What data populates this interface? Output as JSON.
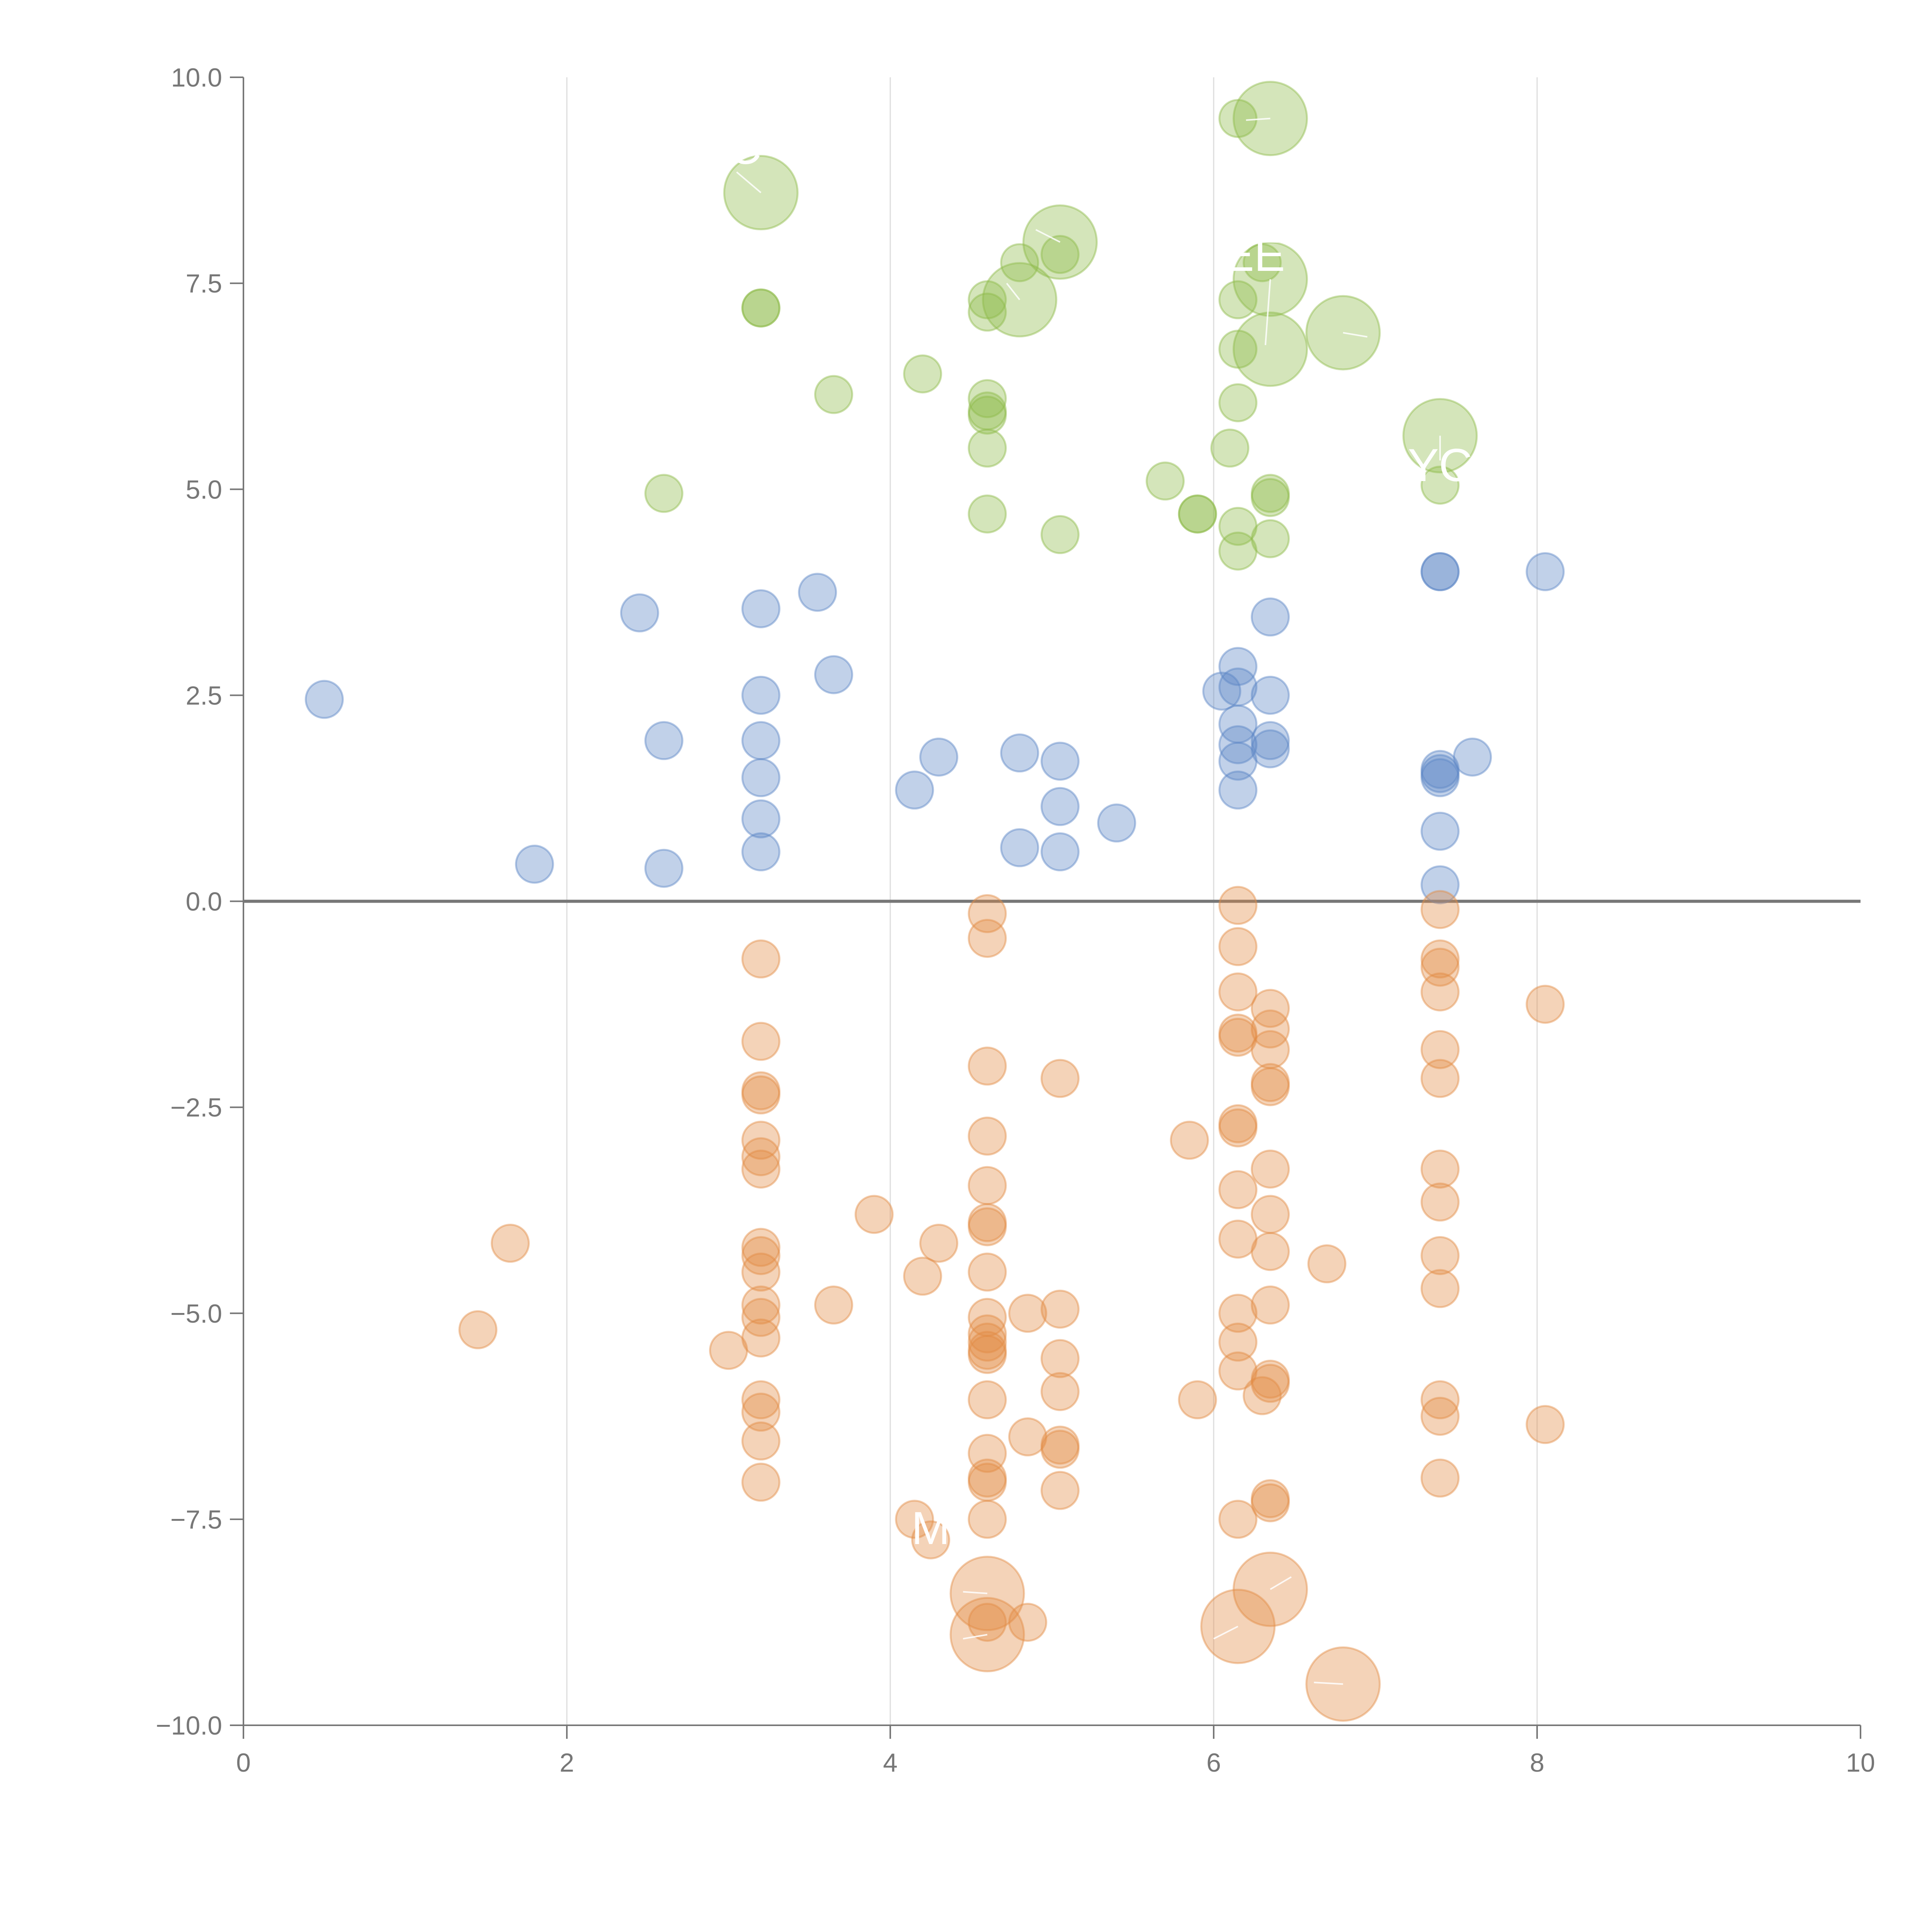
{
  "chart_data": {
    "type": "scatter",
    "title": "",
    "xlabel": "",
    "ylabel": "",
    "xlim": [
      0,
      10
    ],
    "ylim": [
      -10,
      10
    ],
    "x_ticks": [
      0,
      2,
      4,
      6,
      8,
      10
    ],
    "x_tick_labels": [
      "0",
      "2",
      "4",
      "6",
      "8",
      "10"
    ],
    "y_ticks": [
      10,
      7.5,
      5,
      2.5,
      0,
      -2.5,
      -5,
      -7.5,
      -10
    ],
    "y_tick_labels": [
      "10.0",
      "7.5",
      "5.0",
      "2.5",
      "0.0",
      "−2.5",
      "−5.0",
      "−7.5",
      "−10.0"
    ],
    "vertical_grid_at": [
      2,
      4,
      6,
      8
    ],
    "reference_line_y": 0,
    "colors": {
      "green": "#8dbb4a",
      "blue": "#5b86c6",
      "orange": "#e28c45",
      "axis": "#777777",
      "grid": "#dddddd"
    },
    "series": [
      {
        "name": "green",
        "color": "#8dbb4a",
        "points": [
          [
            6.15,
            9.5,
            1
          ],
          [
            6.35,
            9.5,
            2
          ],
          [
            3.2,
            8.6,
            2
          ],
          [
            5.05,
            8.0,
            2
          ],
          [
            5.05,
            7.85,
            1
          ],
          [
            4.8,
            7.75,
            1
          ],
          [
            6.3,
            7.75,
            1
          ],
          [
            6.35,
            7.55,
            2
          ],
          [
            4.8,
            7.3,
            2
          ],
          [
            4.6,
            7.3,
            1
          ],
          [
            4.6,
            7.15,
            1
          ],
          [
            3.2,
            7.2,
            1
          ],
          [
            3.2,
            7.2,
            1
          ],
          [
            6.15,
            7.3,
            1
          ],
          [
            6.8,
            6.9,
            2
          ],
          [
            6.35,
            6.7,
            2
          ],
          [
            6.15,
            6.7,
            1
          ],
          [
            4.2,
            6.4,
            1
          ],
          [
            3.65,
            6.15,
            1
          ],
          [
            4.6,
            6.1,
            1
          ],
          [
            6.15,
            6.05,
            1
          ],
          [
            4.6,
            5.9,
            1
          ],
          [
            4.6,
            5.95,
            1
          ],
          [
            7.4,
            5.65,
            2
          ],
          [
            6.1,
            5.5,
            1
          ],
          [
            4.6,
            5.5,
            1
          ],
          [
            5.7,
            5.1,
            1
          ],
          [
            7.4,
            5.05,
            1
          ],
          [
            2.6,
            4.95,
            1
          ],
          [
            6.35,
            4.95,
            1
          ],
          [
            6.35,
            4.9,
            1
          ],
          [
            5.9,
            4.7,
            1
          ],
          [
            5.9,
            4.7,
            1
          ],
          [
            4.6,
            4.7,
            1
          ],
          [
            6.15,
            4.55,
            1
          ],
          [
            5.05,
            4.45,
            1
          ],
          [
            6.35,
            4.4,
            1
          ],
          [
            6.15,
            4.25,
            1
          ]
        ]
      },
      {
        "name": "blue",
        "color": "#5b86c6",
        "points": [
          [
            7.4,
            4.0,
            1
          ],
          [
            7.4,
            4.0,
            1
          ],
          [
            8.05,
            4.0,
            1
          ],
          [
            3.55,
            3.75,
            1
          ],
          [
            2.45,
            3.5,
            1
          ],
          [
            3.2,
            3.55,
            1
          ],
          [
            6.35,
            3.45,
            1
          ],
          [
            6.15,
            2.85,
            1
          ],
          [
            3.65,
            2.75,
            1
          ],
          [
            6.15,
            2.6,
            1
          ],
          [
            6.05,
            2.55,
            1
          ],
          [
            3.2,
            2.5,
            1
          ],
          [
            6.35,
            2.5,
            1
          ],
          [
            0.5,
            2.45,
            1
          ],
          [
            6.15,
            2.15,
            1
          ],
          [
            3.2,
            1.95,
            1
          ],
          [
            6.35,
            1.95,
            1
          ],
          [
            2.6,
            1.95,
            1
          ],
          [
            6.15,
            1.9,
            1
          ],
          [
            6.35,
            1.85,
            1
          ],
          [
            4.8,
            1.8,
            1
          ],
          [
            4.3,
            1.75,
            1
          ],
          [
            7.6,
            1.75,
            1
          ],
          [
            5.05,
            1.7,
            1
          ],
          [
            6.15,
            1.7,
            1
          ],
          [
            7.4,
            1.6,
            1
          ],
          [
            7.4,
            1.55,
            1
          ],
          [
            7.4,
            1.5,
            1
          ],
          [
            3.2,
            1.5,
            1
          ],
          [
            4.15,
            1.35,
            1
          ],
          [
            6.15,
            1.35,
            1
          ],
          [
            5.05,
            1.15,
            1
          ],
          [
            3.2,
            1.0,
            1
          ],
          [
            5.4,
            0.95,
            1
          ],
          [
            7.4,
            0.85,
            1
          ],
          [
            4.8,
            0.65,
            1
          ],
          [
            3.2,
            0.6,
            1
          ],
          [
            5.05,
            0.6,
            1
          ],
          [
            1.8,
            0.45,
            1
          ],
          [
            2.6,
            0.4,
            1
          ],
          [
            7.4,
            0.2,
            1
          ]
        ]
      },
      {
        "name": "orange",
        "color": "#e28c45",
        "points": [
          [
            6.15,
            -0.05,
            1
          ],
          [
            7.4,
            -0.1,
            1
          ],
          [
            4.6,
            -0.15,
            1
          ],
          [
            4.6,
            -0.45,
            1
          ],
          [
            6.15,
            -0.55,
            1
          ],
          [
            3.2,
            -0.7,
            1
          ],
          [
            7.4,
            -0.7,
            1
          ],
          [
            7.4,
            -0.8,
            1
          ],
          [
            6.15,
            -1.1,
            1
          ],
          [
            7.4,
            -1.1,
            1
          ],
          [
            8.05,
            -1.25,
            1
          ],
          [
            6.35,
            -1.3,
            1
          ],
          [
            6.35,
            -1.55,
            1
          ],
          [
            6.15,
            -1.6,
            1
          ],
          [
            6.15,
            -1.65,
            1
          ],
          [
            3.2,
            -1.7,
            1
          ],
          [
            6.35,
            -1.8,
            1
          ],
          [
            7.4,
            -1.8,
            1
          ],
          [
            4.6,
            -2.0,
            1
          ],
          [
            5.05,
            -2.15,
            1
          ],
          [
            7.4,
            -2.15,
            1
          ],
          [
            6.35,
            -2.2,
            1
          ],
          [
            6.35,
            -2.25,
            1
          ],
          [
            3.2,
            -2.3,
            1
          ],
          [
            3.2,
            -2.35,
            1
          ],
          [
            6.15,
            -2.7,
            1
          ],
          [
            6.15,
            -2.75,
            1
          ],
          [
            4.6,
            -2.85,
            1
          ],
          [
            5.85,
            -2.9,
            1
          ],
          [
            3.2,
            -2.9,
            1
          ],
          [
            3.2,
            -3.1,
            1
          ],
          [
            3.2,
            -3.25,
            1
          ],
          [
            6.35,
            -3.25,
            1
          ],
          [
            7.4,
            -3.25,
            1
          ],
          [
            4.6,
            -3.45,
            1
          ],
          [
            6.15,
            -3.5,
            1
          ],
          [
            7.4,
            -3.65,
            1
          ],
          [
            3.9,
            -3.8,
            1
          ],
          [
            6.35,
            -3.8,
            1
          ],
          [
            4.6,
            -3.9,
            1
          ],
          [
            4.6,
            -3.95,
            1
          ],
          [
            6.15,
            -4.1,
            1
          ],
          [
            1.65,
            -4.15,
            1
          ],
          [
            4.3,
            -4.15,
            1
          ],
          [
            3.2,
            -4.2,
            1
          ],
          [
            6.35,
            -4.25,
            1
          ],
          [
            3.2,
            -4.3,
            1
          ],
          [
            7.4,
            -4.3,
            1
          ],
          [
            6.7,
            -4.4,
            1
          ],
          [
            3.2,
            -4.5,
            1
          ],
          [
            4.6,
            -4.5,
            1
          ],
          [
            4.2,
            -4.55,
            1
          ],
          [
            7.4,
            -4.7,
            1
          ],
          [
            3.65,
            -4.9,
            1
          ],
          [
            3.2,
            -4.9,
            1
          ],
          [
            6.35,
            -4.9,
            1
          ],
          [
            5.05,
            -4.95,
            1
          ],
          [
            6.15,
            -5.0,
            1
          ],
          [
            4.85,
            -5.0,
            1
          ],
          [
            3.2,
            -5.05,
            1
          ],
          [
            4.6,
            -5.05,
            1
          ],
          [
            1.45,
            -5.2,
            1
          ],
          [
            4.6,
            -5.25,
            1
          ],
          [
            3.2,
            -5.3,
            1
          ],
          [
            6.15,
            -5.35,
            1
          ],
          [
            4.6,
            -5.35,
            1
          ],
          [
            4.6,
            -5.45,
            1
          ],
          [
            3.0,
            -5.45,
            1
          ],
          [
            4.6,
            -5.5,
            1
          ],
          [
            5.05,
            -5.55,
            1
          ],
          [
            6.15,
            -5.7,
            1
          ],
          [
            6.35,
            -5.8,
            1
          ],
          [
            6.35,
            -5.85,
            1
          ],
          [
            5.05,
            -5.95,
            1
          ],
          [
            6.3,
            -6.0,
            1
          ],
          [
            3.2,
            -6.05,
            1
          ],
          [
            7.4,
            -6.05,
            1
          ],
          [
            4.6,
            -6.05,
            1
          ],
          [
            5.9,
            -6.05,
            1
          ],
          [
            3.2,
            -6.2,
            1
          ],
          [
            7.4,
            -6.25,
            1
          ],
          [
            8.05,
            -6.35,
            1
          ],
          [
            4.85,
            -6.5,
            1
          ],
          [
            3.2,
            -6.55,
            1
          ],
          [
            5.05,
            -6.6,
            1
          ],
          [
            5.05,
            -6.65,
            1
          ],
          [
            4.6,
            -6.7,
            1
          ],
          [
            4.6,
            -7.0,
            1
          ],
          [
            3.2,
            -7.05,
            1
          ],
          [
            4.6,
            -7.05,
            1
          ],
          [
            7.4,
            -7.0,
            1
          ],
          [
            5.05,
            -7.15,
            1
          ],
          [
            6.35,
            -7.25,
            1
          ],
          [
            6.35,
            -7.3,
            1
          ],
          [
            4.15,
            -7.5,
            1
          ],
          [
            4.6,
            -7.5,
            1
          ],
          [
            6.15,
            -7.5,
            1
          ],
          [
            4.25,
            -7.75,
            1
          ],
          [
            4.6,
            -8.4,
            2
          ],
          [
            6.35,
            -8.35,
            2
          ],
          [
            4.6,
            -8.75,
            1
          ],
          [
            4.85,
            -8.75,
            1
          ],
          [
            6.15,
            -8.8,
            2
          ],
          [
            4.6,
            -8.9,
            2
          ],
          [
            6.8,
            -9.5,
            2
          ]
        ]
      }
    ],
    "annotations": [
      {
        "text": "C",
        "x": 3.1,
        "y": 8.95
      },
      {
        "text": "EE",
        "x": 6.25,
        "y": 7.65
      },
      {
        "text": "YC",
        "x": 7.4,
        "y": 5.1
      },
      {
        "text": "M",
        "x": 4.25,
        "y": -7.8
      }
    ]
  }
}
